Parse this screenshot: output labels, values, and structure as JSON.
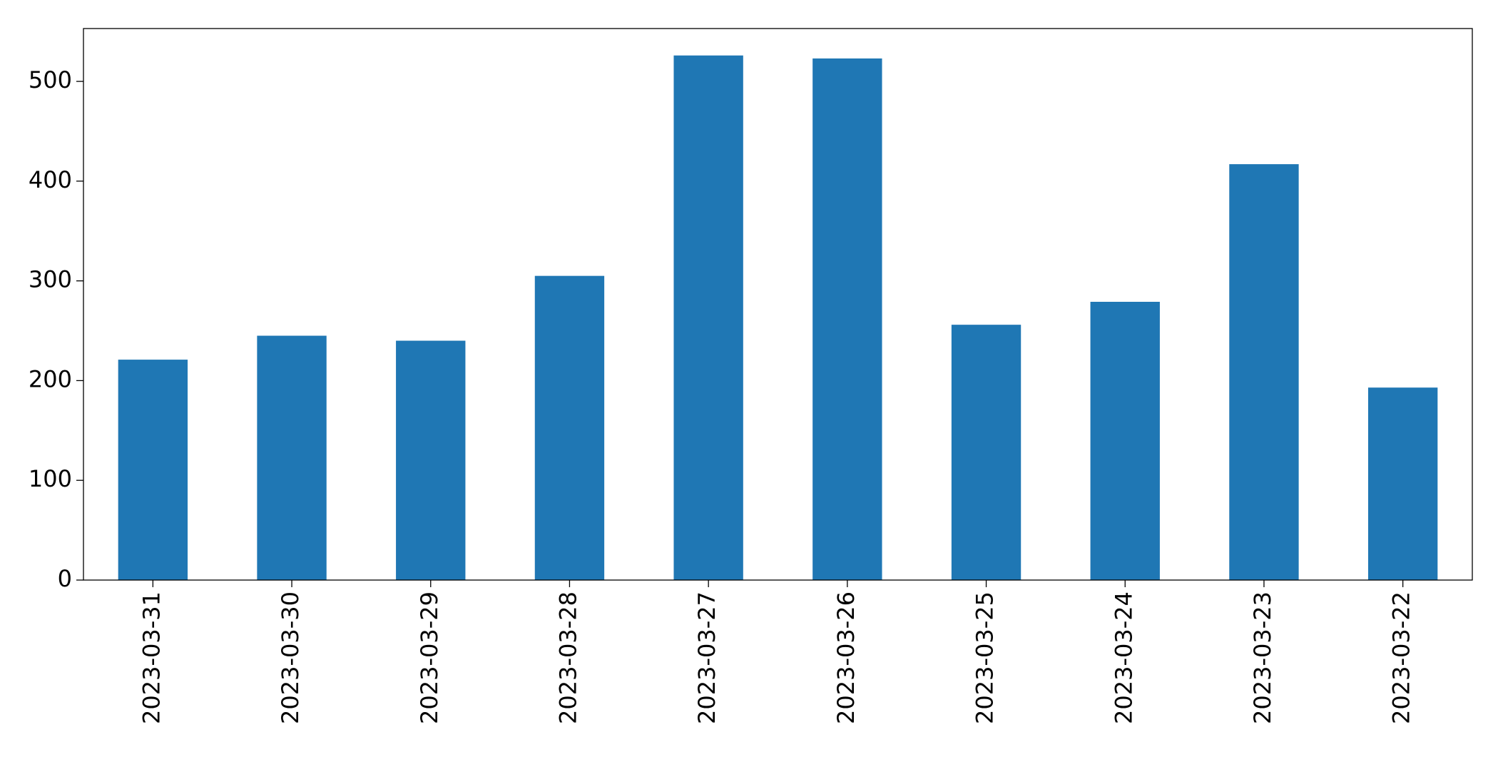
{
  "chart_data": {
    "type": "bar",
    "categories": [
      "2023-03-31",
      "2023-03-30",
      "2023-03-29",
      "2023-03-28",
      "2023-03-27",
      "2023-03-26",
      "2023-03-25",
      "2023-03-24",
      "2023-03-23",
      "2023-03-22"
    ],
    "values": [
      221,
      245,
      240,
      305,
      526,
      523,
      256,
      279,
      417,
      193
    ],
    "color": "#1f77b4",
    "ylim": [
      0,
      553
    ],
    "yticks": [
      0,
      100,
      200,
      300,
      400,
      500
    ],
    "grid": false
  }
}
